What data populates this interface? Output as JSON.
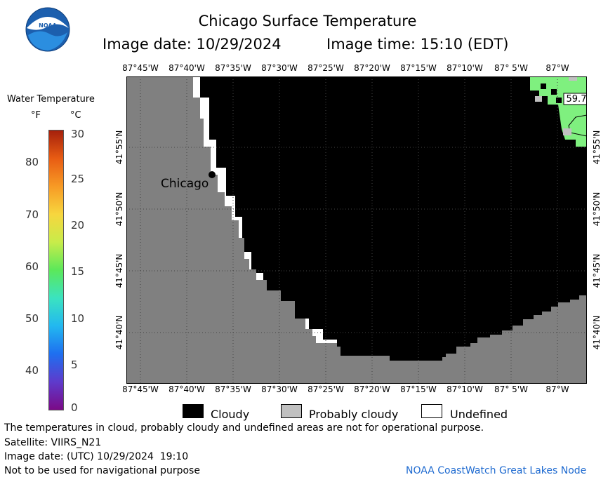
{
  "header": {
    "logo_text": "NOAA",
    "title": "Chicago Surface Temperature",
    "image_date": "Image date: 10/29/2024",
    "image_time": "Image time: 15:10 (EDT)"
  },
  "colorbar": {
    "title": "Water Temperature",
    "unit_f": "°F",
    "unit_c": "°C",
    "f_ticks": [
      "80",
      "70",
      "60",
      "50",
      "40"
    ],
    "c_ticks": [
      "30",
      "25",
      "20",
      "15",
      "10",
      "5",
      "0"
    ],
    "colors": [
      "#7b0a87",
      "#5e3bcc",
      "#1e6ff0",
      "#22b8f0",
      "#3be3c0",
      "#5be85a",
      "#c8ec4a",
      "#f7d63e",
      "#f79a25",
      "#e85c13",
      "#a5200c"
    ]
  },
  "map": {
    "lon_labels": [
      "87°45'W",
      "87°40'W",
      "87°35'W",
      "87°30'W",
      "87°25'W",
      "87°20'W",
      "87°15'W",
      "87°10'W",
      "87° 5'W",
      "87°W"
    ],
    "lat_labels": [
      "41°55'N",
      "41°50'N",
      "41°45'N",
      "41°40'N"
    ],
    "city_label": "Chicago",
    "temp_label": "59.7",
    "colors": {
      "land": "#808080",
      "cloud": "#000000",
      "water_temp": "#7ff07f",
      "probably_cloudy": "#c0c0c0",
      "undefined": "#ffffff"
    }
  },
  "legend": {
    "cloudy": "Cloudy",
    "probably_cloudy": "Probably cloudy",
    "undefined": "Undefined"
  },
  "footer": {
    "disclaimer": "The temperatures in cloud, probably cloudy and undefined areas are not for operational purpose.",
    "satellite": "Satellite: VIIRS_N21",
    "utc_date": "Image date: (UTC) 10/29/2024  19:10",
    "nav_warning": "Not to be used for navigational purpose",
    "credit": "NOAA CoastWatch Great Lakes Node"
  }
}
